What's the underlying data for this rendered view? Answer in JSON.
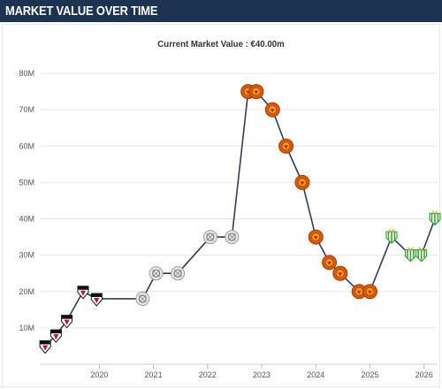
{
  "header": {
    "title": "MARKET VALUE OVER TIME"
  },
  "colors": {
    "header_bg": "#1c3352",
    "line": "#2b3f5c",
    "grid": "#e6e6e6",
    "club_spfc": "#c8102e",
    "club_neutral": "#9a9a9a",
    "club_manutd": "#da5a0c",
    "club_betis": "#3fa33a"
  },
  "chart_data": {
    "type": "line",
    "title": "Current Market Value : €40.00m",
    "xlabel": "",
    "ylabel": "",
    "ylim": [
      0,
      80
    ],
    "xlim": [
      2018.9,
      2026.25
    ],
    "yticks": [
      10,
      20,
      30,
      40,
      50,
      60,
      70,
      80
    ],
    "ytick_labels": [
      "10M",
      "20M",
      "30M",
      "40M",
      "50M",
      "60M",
      "70M",
      "80M"
    ],
    "xticks": [
      2020,
      2021,
      2022,
      2023,
      2024,
      2025,
      2026
    ],
    "xtick_labels": [
      "2020",
      "2021",
      "2022",
      "2023",
      "2024",
      "2025",
      "2026"
    ],
    "grid": "horizontal",
    "unit": "€m",
    "series": [
      {
        "points": [
          {
            "date": 2019.0,
            "value": 5,
            "club": "spfc"
          },
          {
            "date": 2019.2,
            "value": 8,
            "club": "spfc"
          },
          {
            "date": 2019.4,
            "value": 12,
            "club": "spfc"
          },
          {
            "date": 2019.7,
            "value": 20,
            "club": "spfc"
          },
          {
            "date": 2019.95,
            "value": 18,
            "club": "spfc"
          },
          {
            "date": 2020.8,
            "value": 18,
            "club": "neutral"
          },
          {
            "date": 2021.05,
            "value": 25,
            "club": "neutral"
          },
          {
            "date": 2021.45,
            "value": 25,
            "club": "neutral"
          },
          {
            "date": 2022.05,
            "value": 35,
            "club": "neutral"
          },
          {
            "date": 2022.45,
            "value": 35,
            "club": "neutral"
          },
          {
            "date": 2022.75,
            "value": 75,
            "club": "manutd"
          },
          {
            "date": 2022.9,
            "value": 75,
            "club": "manutd"
          },
          {
            "date": 2023.2,
            "value": 70,
            "club": "manutd"
          },
          {
            "date": 2023.45,
            "value": 60,
            "club": "manutd"
          },
          {
            "date": 2023.75,
            "value": 50,
            "club": "manutd"
          },
          {
            "date": 2024.0,
            "value": 35,
            "club": "manutd"
          },
          {
            "date": 2024.25,
            "value": 28,
            "club": "manutd"
          },
          {
            "date": 2024.45,
            "value": 25,
            "club": "manutd"
          },
          {
            "date": 2024.8,
            "value": 20,
            "club": "manutd"
          },
          {
            "date": 2025.0,
            "value": 20,
            "club": "manutd"
          },
          {
            "date": 2025.4,
            "value": 35,
            "club": "betis"
          },
          {
            "date": 2025.75,
            "value": 30,
            "club": "betis"
          },
          {
            "date": 2025.95,
            "value": 30,
            "club": "betis"
          },
          {
            "date": 2026.2,
            "value": 40,
            "club": "betis"
          }
        ]
      }
    ]
  }
}
